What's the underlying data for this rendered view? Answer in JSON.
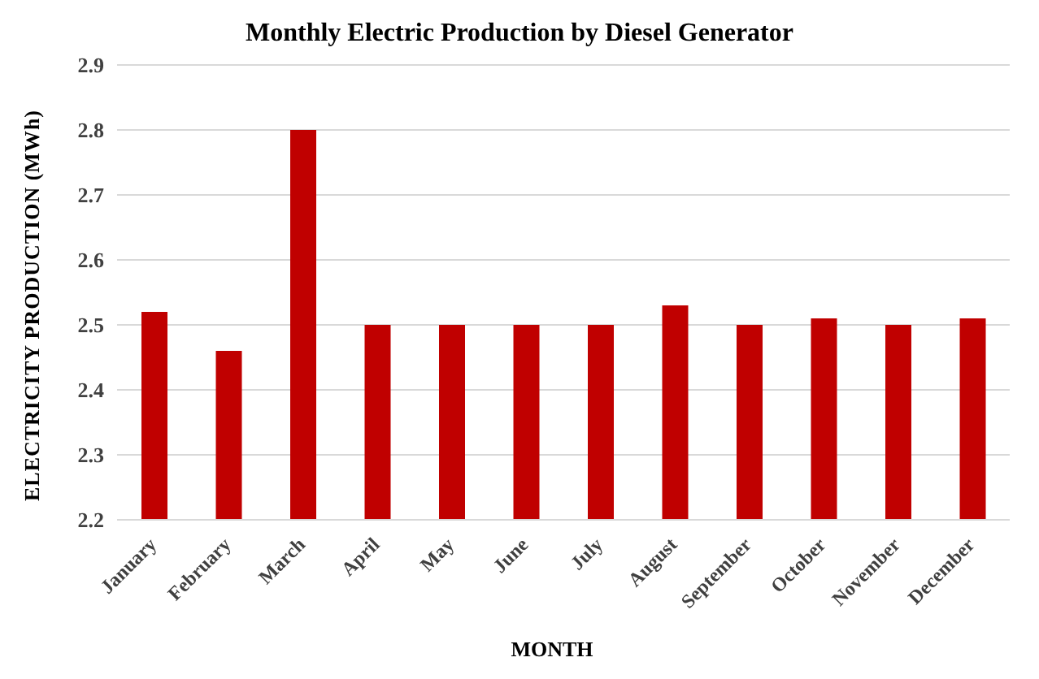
{
  "chart_data": {
    "type": "bar",
    "title": "Monthly Electric Production by Diesel Generator",
    "xlabel": "MONTH",
    "ylabel": "ELECTRICITY PRODUCTION (MWh)",
    "categories": [
      "January",
      "February",
      "March",
      "April",
      "May",
      "June",
      "July",
      "August",
      "September",
      "October",
      "November",
      "December"
    ],
    "values": [
      2.52,
      2.46,
      2.8,
      2.5,
      2.5,
      2.5,
      2.5,
      2.53,
      2.5,
      2.51,
      2.5,
      2.51
    ],
    "color": "#c00000",
    "ylim": [
      2.2,
      2.9
    ],
    "yticks": [
      2.2,
      2.3,
      2.4,
      2.5,
      2.6,
      2.7,
      2.8,
      2.9
    ],
    "grid": "y",
    "legend": false
  }
}
